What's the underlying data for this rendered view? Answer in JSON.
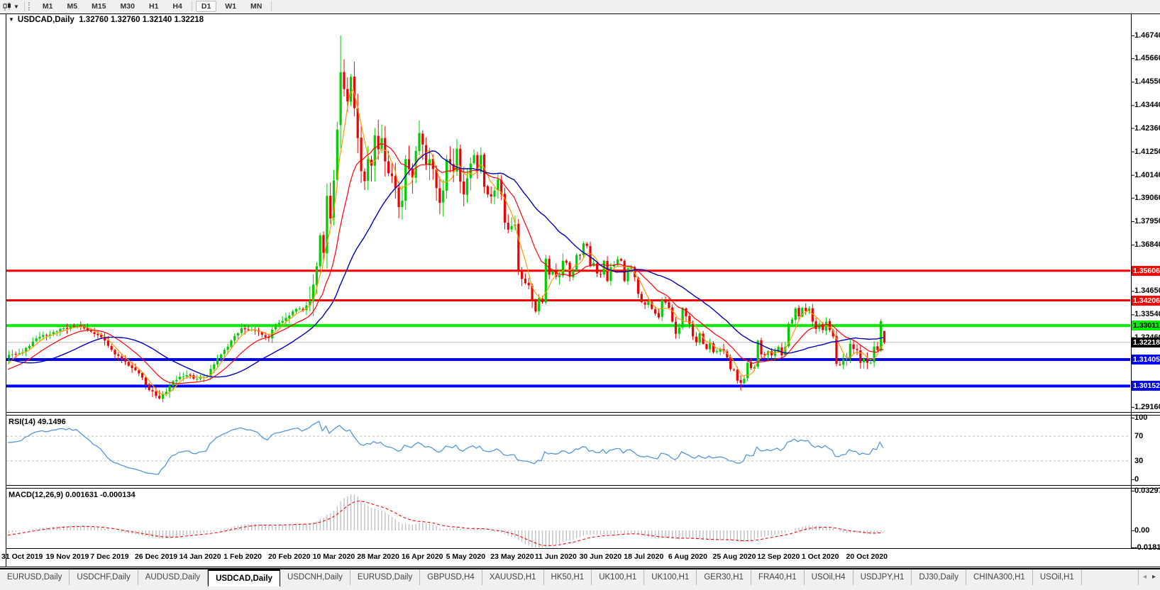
{
  "toolbar": {
    "chart_type_icon": "candlestick-chart-icon",
    "caret": "▼",
    "timeframes": [
      "M1",
      "M5",
      "M15",
      "M30",
      "H1",
      "H4",
      "D1",
      "W1",
      "MN"
    ],
    "active_timeframe": "D1"
  },
  "chart": {
    "title": {
      "caret": "▼",
      "symbol": "USDCAD,Daily",
      "ohlc": "1.32760 1.32760 1.32140 1.32218"
    }
  },
  "rsi_panel": {
    "label": "RSI(14)",
    "value": "49.1496"
  },
  "macd_panel": {
    "label": "MACD(12,26,9)",
    "values": "0.001631 -0.000134"
  },
  "tabs": {
    "scroll_left": "◂",
    "scroll_right": "▸",
    "items": [
      {
        "label": "EURUSD,Daily",
        "active": false
      },
      {
        "label": "USDCHF,Daily",
        "active": false
      },
      {
        "label": "AUDUSD,Daily",
        "active": false
      },
      {
        "label": "USDCAD,Daily",
        "active": true
      },
      {
        "label": "USDCNH,Daily",
        "active": false
      },
      {
        "label": "EURUSD,Daily",
        "active": false
      },
      {
        "label": "GBPUSD,H4",
        "active": false
      },
      {
        "label": "XAUUSD,H1",
        "active": false
      },
      {
        "label": "HK50,H1",
        "active": false
      },
      {
        "label": "UK100,H1",
        "active": false
      },
      {
        "label": "UK100,H1",
        "active": false
      },
      {
        "label": "GER30,H1",
        "active": false
      },
      {
        "label": "FRA40,H1",
        "active": false
      },
      {
        "label": "USOil,H4",
        "active": false
      },
      {
        "label": "USDJPY,H1",
        "active": false
      },
      {
        "label": "DJ30,Daily",
        "active": false
      },
      {
        "label": "CHINA300,H1",
        "active": false
      },
      {
        "label": "USOil,H1",
        "active": false
      }
    ]
  },
  "chart_data": {
    "type": "candlestick",
    "symbol": "USDCAD",
    "timeframe": "Daily",
    "last_ohlc": {
      "open": 1.3276,
      "high": 1.3276,
      "low": 1.3214,
      "close": 1.32218
    },
    "bar_count": 257,
    "colors": {
      "up": "#00cc00",
      "down": "#ee0000",
      "current_line": "#b8b8b8"
    },
    "y_ticks": [
      1.4674,
      1.4566,
      1.4455,
      1.4344,
      1.4236,
      1.4125,
      1.4014,
      1.3906,
      1.3795,
      1.3684,
      1.3465,
      1.3354,
      1.3246,
      1.2916
    ],
    "x_tick_step": 13,
    "x_tick_dates": [
      "31 Oct 2019",
      "19 Nov 2019",
      "7 Dec 2019",
      "26 Dec 2019",
      "14 Jan 2020",
      "1 Feb 2020",
      "20 Feb 2020",
      "10 Mar 2020",
      "28 Mar 2020",
      "16 Apr 2020",
      "5 May 2020",
      "23 May 2020",
      "11 Jun 2020",
      "30 Jun 2020",
      "18 Jul 2020",
      "6 Aug 2020",
      "25 Aug 2020",
      "12 Sep 2020",
      "1 Oct 2020",
      "20 Oct 2020"
    ],
    "levels": [
      {
        "price": 1.35606,
        "label": "1.35606",
        "color": "#ff0000",
        "text_color": "#ffffff",
        "width": 3,
        "role": "resistance"
      },
      {
        "price": 1.34206,
        "label": "1.34206",
        "color": "#ff0000",
        "text_color": "#ffffff",
        "width": 3,
        "role": "resistance"
      },
      {
        "price": 1.33011,
        "label": "1.33011",
        "color": "#00ee00",
        "text_color": "#000000",
        "width": 4,
        "role": "pivot"
      },
      {
        "price": 1.31405,
        "label": "1.31405",
        "color": "#0000ff",
        "text_color": "#ffffff",
        "width": 4,
        "role": "support"
      },
      {
        "price": 1.30152,
        "label": "1.30152",
        "color": "#0000ff",
        "text_color": "#ffffff",
        "width": 4,
        "role": "support"
      }
    ],
    "current_price": {
      "value": 1.32218,
      "label": "1.32218",
      "bg": "#000000",
      "text_color": "#ffffff"
    },
    "moving_averages": [
      {
        "name": "fast",
        "period": 5,
        "method": "sma",
        "color": "#ff9900"
      },
      {
        "name": "medium",
        "period": 20,
        "method": "lwma",
        "color": "#ff0000"
      },
      {
        "name": "slow",
        "period": 30,
        "method": "sma",
        "color": "#0000bb"
      }
    ],
    "indicators": {
      "rsi": {
        "period": 14,
        "current": 49.1496,
        "levels": [
          100,
          70,
          30,
          0
        ],
        "dashed_levels": [
          70,
          30
        ],
        "color": "#4f97e0"
      },
      "macd": {
        "fast": 12,
        "slow": 26,
        "signal": 9,
        "current_macd": 0.001631,
        "current_signal": -0.000134,
        "axis_ticks": [
          {
            "label": "0.032972",
            "value": 0.032972
          },
          {
            "label": "0.00",
            "value": 0
          },
          {
            "label": "-0.01815",
            "value": -0.01815
          }
        ],
        "histogram_color": "#c0c0c0",
        "signal_color": "#ff0000"
      }
    },
    "volatility_zones": [
      [
        41,
        47,
        0.0035
      ],
      [
        88,
        135,
        0.0085
      ],
      [
        136,
        162,
        0.0048
      ],
      [
        242,
        256,
        0.0035
      ]
    ],
    "forced_candles": {
      "44": {
        "l": 1.2951
      },
      "97": {
        "o": 1.425,
        "h": 1.4674,
        "l": 1.414
      },
      "98": {
        "h": 1.4562
      },
      "214": {
        "l": 1.2994
      },
      "255": {
        "o": 1.3182,
        "h": 1.3332,
        "l": 1.3175
      },
      "256": {
        "o": 1.3276,
        "h": 1.3276,
        "l": 1.3214,
        "c": 1.32218
      }
    },
    "price_path": [
      [
        -45,
        1.3268
      ],
      [
        -36,
        1.3296
      ],
      [
        -29,
        1.3332
      ],
      [
        -24,
        1.324
      ],
      [
        -18,
        1.312
      ],
      [
        -12,
        1.3078
      ],
      [
        -7,
        1.3056
      ],
      [
        -3,
        1.3085
      ],
      [
        -1,
        1.314
      ],
      [
        0,
        1.3163
      ],
      [
        3,
        1.317
      ],
      [
        6,
        1.3205
      ],
      [
        9,
        1.3248
      ],
      [
        13,
        1.327
      ],
      [
        16,
        1.3288
      ],
      [
        20,
        1.3302
      ],
      [
        23,
        1.328
      ],
      [
        26,
        1.3256
      ],
      [
        28,
        1.323
      ],
      [
        31,
        1.3165
      ],
      [
        34,
        1.313
      ],
      [
        37,
        1.309
      ],
      [
        39,
        1.3055
      ],
      [
        41,
        1.2996
      ],
      [
        43,
        1.2968
      ],
      [
        44,
        1.2956
      ],
      [
        46,
        1.2988
      ],
      [
        48,
        1.3038
      ],
      [
        52,
        1.3066
      ],
      [
        55,
        1.3048
      ],
      [
        58,
        1.306
      ],
      [
        60,
        1.3118
      ],
      [
        63,
        1.3186
      ],
      [
        65,
        1.323
      ],
      [
        68,
        1.3288
      ],
      [
        71,
        1.3282
      ],
      [
        74,
        1.3258
      ],
      [
        76,
        1.3242
      ],
      [
        78,
        1.3308
      ],
      [
        81,
        1.3338
      ],
      [
        84,
        1.338
      ],
      [
        86,
        1.3372
      ],
      [
        88,
        1.342
      ],
      [
        89,
        1.3495
      ],
      [
        90,
        1.3582
      ],
      [
        91,
        1.3728
      ],
      [
        92,
        1.3645
      ],
      [
        93,
        1.3915
      ],
      [
        94,
        1.3808
      ],
      [
        95,
        1.3988
      ],
      [
        96,
        1.4228
      ],
      [
        97,
        1.45
      ],
      [
        98,
        1.442
      ],
      [
        99,
        1.4362
      ],
      [
        100,
        1.4478
      ],
      [
        101,
        1.433
      ],
      [
        102,
        1.4188
      ],
      [
        103,
        1.4032
      ],
      [
        104,
        1.3985
      ],
      [
        105,
        1.4088
      ],
      [
        106,
        1.4058
      ],
      [
        107,
        1.4202
      ],
      [
        108,
        1.4135
      ],
      [
        109,
        1.4188
      ],
      [
        110,
        1.4078
      ],
      [
        111,
        1.4022
      ],
      [
        112,
        1.4008
      ],
      [
        113,
        1.3952
      ],
      [
        114,
        1.3862
      ],
      [
        115,
        1.3892
      ],
      [
        116,
        1.4088
      ],
      [
        117,
        1.4042
      ],
      [
        118,
        1.4002
      ],
      [
        119,
        1.4128
      ],
      [
        120,
        1.4212
      ],
      [
        121,
        1.4158
      ],
      [
        122,
        1.4062
      ],
      [
        123,
        1.4088
      ],
      [
        124,
        1.4042
      ],
      [
        125,
        1.3952
      ],
      [
        126,
        1.3882
      ],
      [
        127,
        1.394
      ],
      [
        128,
        1.4088
      ],
      [
        129,
        1.4068
      ],
      [
        130,
        1.4032
      ],
      [
        131,
        1.4138
      ],
      [
        132,
        1.3982
      ],
      [
        133,
        1.3922
      ],
      [
        134,
        1.3998
      ],
      [
        135,
        1.4068
      ],
      [
        136,
        1.4108
      ],
      [
        137,
        1.4032
      ],
      [
        138,
        1.4108
      ],
      [
        139,
        1.3958
      ],
      [
        140,
        1.3922
      ],
      [
        141,
        1.3912
      ],
      [
        142,
        1.394
      ],
      [
        143,
        1.3992
      ],
      [
        144,
        1.3922
      ],
      [
        145,
        1.3788
      ],
      [
        146,
        1.3755
      ],
      [
        147,
        1.3772
      ],
      [
        148,
        1.378
      ],
      [
        149,
        1.3562
      ],
      [
        150,
        1.3522
      ],
      [
        151,
        1.3502
      ],
      [
        152,
        1.3492
      ],
      [
        153,
        1.3422
      ],
      [
        154,
        1.3368
      ],
      [
        155,
        1.3432
      ],
      [
        156,
        1.3412
      ],
      [
        157,
        1.3618
      ],
      [
        158,
        1.3542
      ],
      [
        159,
        1.3558
      ],
      [
        160,
        1.3532
      ],
      [
        161,
        1.354
      ],
      [
        162,
        1.3608
      ],
      [
        163,
        1.3598
      ],
      [
        164,
        1.3532
      ],
      [
        165,
        1.356
      ],
      [
        166,
        1.3635
      ],
      [
        167,
        1.3632
      ],
      [
        168,
        1.369
      ],
      [
        169,
        1.3678
      ],
      [
        170,
        1.3582
      ],
      [
        171,
        1.3598
      ],
      [
        172,
        1.3548
      ],
      [
        173,
        1.3545
      ],
      [
        174,
        1.3608
      ],
      [
        175,
        1.3512
      ],
      [
        176,
        1.3578
      ],
      [
        177,
        1.359
      ],
      [
        178,
        1.3615
      ],
      [
        179,
        1.3608
      ],
      [
        180,
        1.3512
      ],
      [
        181,
        1.3572
      ],
      [
        182,
        1.3578
      ],
      [
        183,
        1.353
      ],
      [
        184,
        1.3452
      ],
      [
        185,
        1.3412
      ],
      [
        186,
        1.34
      ],
      [
        187,
        1.3415
      ],
      [
        188,
        1.338
      ],
      [
        189,
        1.3358
      ],
      [
        190,
        1.334
      ],
      [
        191,
        1.3422
      ],
      [
        192,
        1.341
      ],
      [
        193,
        1.3385
      ],
      [
        194,
        1.332
      ],
      [
        195,
        1.3262
      ],
      [
        196,
        1.3292
      ],
      [
        197,
        1.3385
      ],
      [
        198,
        1.3345
      ],
      [
        199,
        1.331
      ],
      [
        200,
        1.325
      ],
      [
        201,
        1.3222
      ],
      [
        202,
        1.3265
      ],
      [
        203,
        1.3215
      ],
      [
        204,
        1.319
      ],
      [
        205,
        1.322
      ],
      [
        206,
        1.3175
      ],
      [
        207,
        1.318
      ],
      [
        208,
        1.319
      ],
      [
        209,
        1.318
      ],
      [
        210,
        1.315
      ],
      [
        211,
        1.3095
      ],
      [
        212,
        1.309
      ],
      [
        213,
        1.304
      ],
      [
        214,
        1.303
      ],
      [
        215,
        1.305
      ],
      [
        216,
        1.3125
      ],
      [
        217,
        1.31
      ],
      [
        218,
        1.3105
      ],
      [
        219,
        1.323
      ],
      [
        220,
        1.3165
      ],
      [
        221,
        1.316
      ],
      [
        222,
        1.318
      ],
      [
        223,
        1.316
      ],
      [
        224,
        1.318
      ],
      [
        225,
        1.32
      ],
      [
        226,
        1.316
      ],
      [
        227,
        1.32
      ],
      [
        228,
        1.331
      ],
      [
        229,
        1.333
      ],
      [
        230,
        1.3382
      ],
      [
        231,
        1.3345
      ],
      [
        232,
        1.3385
      ],
      [
        233,
        1.337
      ],
      [
        234,
        1.3382
      ],
      [
        235,
        1.332
      ],
      [
        236,
        1.3285
      ],
      [
        237,
        1.331
      ],
      [
        238,
        1.328
      ],
      [
        239,
        1.332
      ],
      [
        240,
        1.328
      ],
      [
        241,
        1.325
      ],
      [
        242,
        1.312
      ],
      [
        243,
        1.3115
      ],
      [
        244,
        1.314
      ],
      [
        245,
        1.3145
      ],
      [
        246,
        1.3215
      ],
      [
        247,
        1.319
      ],
      [
        248,
        1.3185
      ],
      [
        249,
        1.3125
      ],
      [
        250,
        1.3145
      ],
      [
        251,
        1.3125
      ],
      [
        252,
        1.3125
      ],
      [
        253,
        1.3202
      ],
      [
        254,
        1.3185
      ],
      [
        255,
        1.3322
      ],
      [
        256,
        1.32218
      ]
    ]
  }
}
